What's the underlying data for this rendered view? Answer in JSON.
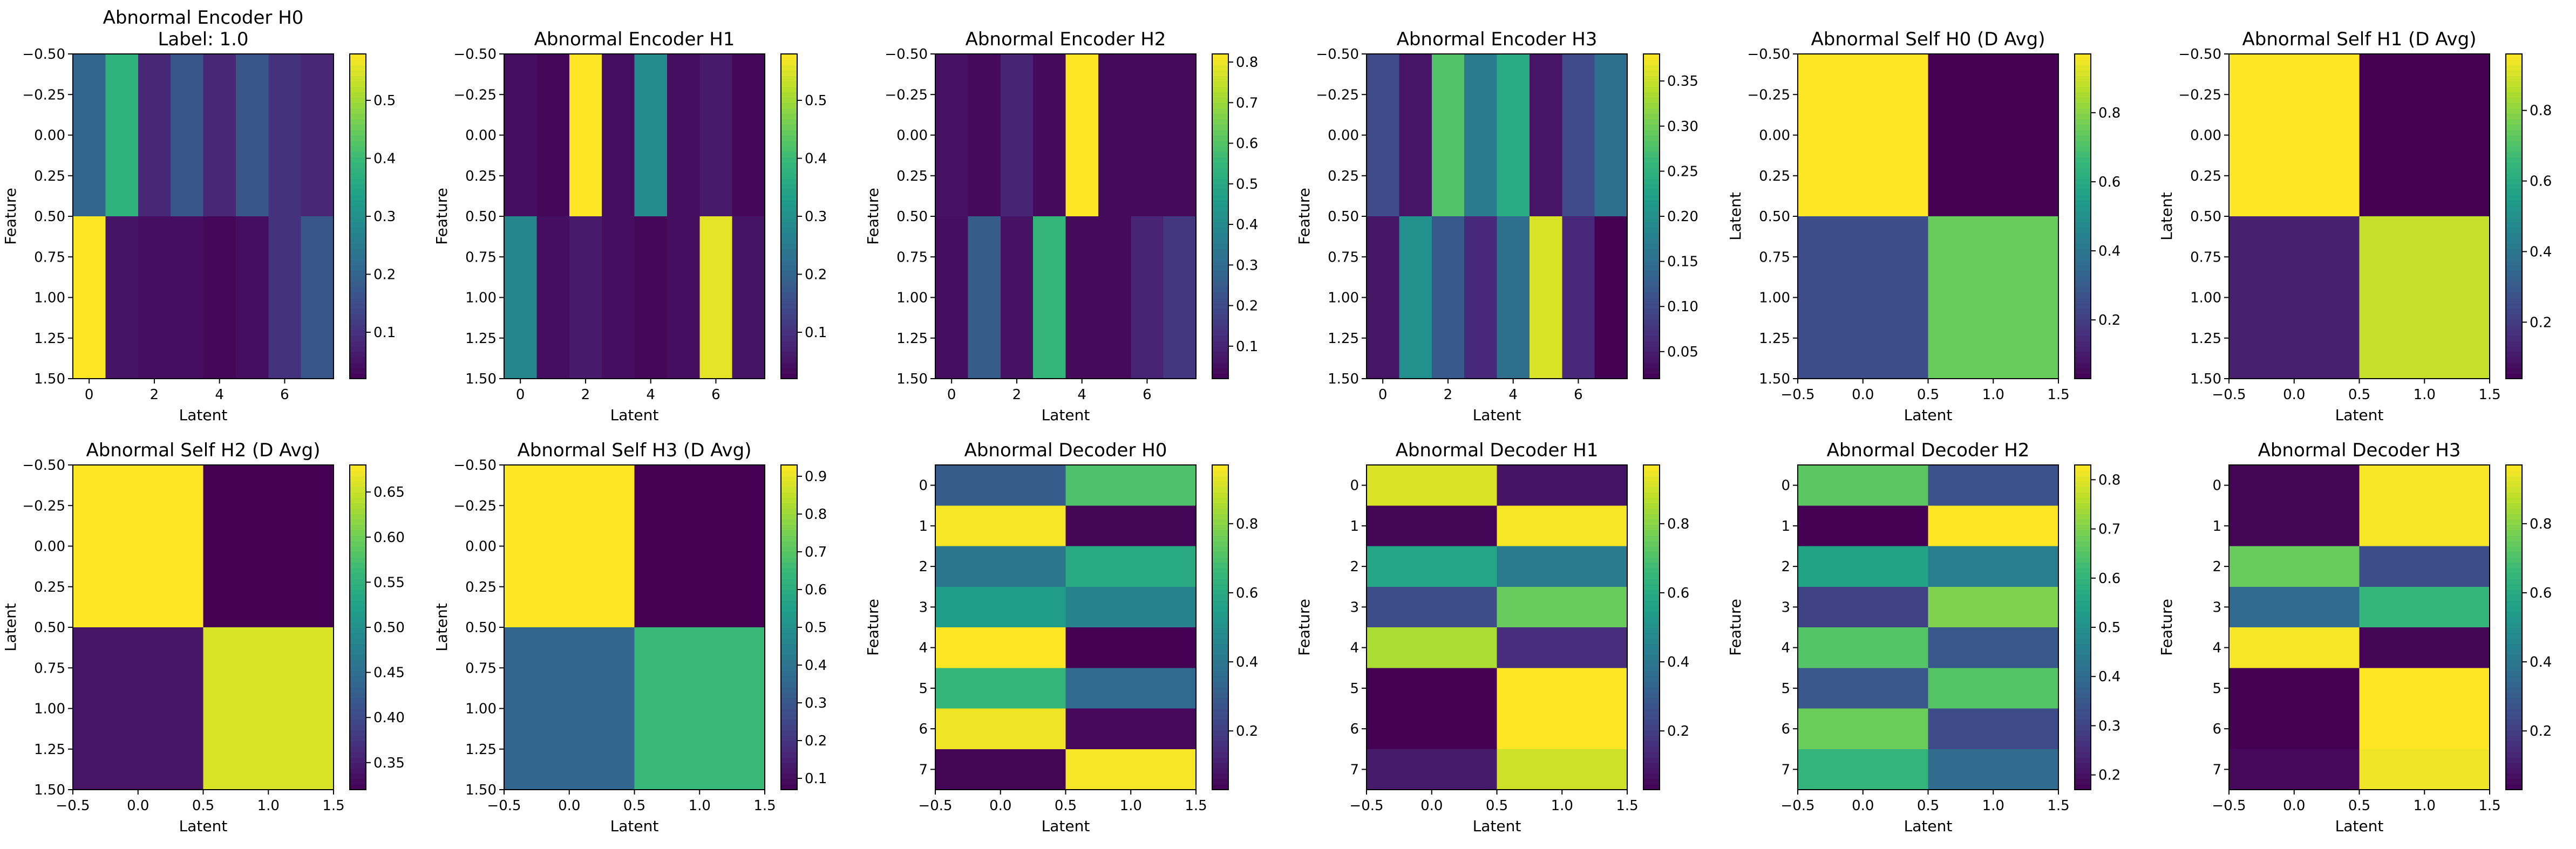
{
  "figure": {
    "cmap": "viridis",
    "colors": {
      "background": "#ffffff",
      "axes": "#000000"
    }
  },
  "chart_data": [
    {
      "id": "enc-h0",
      "type": "heatmap",
      "title": "Abnormal Encoder H0\nLabel: 1.0",
      "xlabel": "Latent",
      "ylabel": "Feature",
      "xlim": [
        -0.5,
        7.5
      ],
      "ylim": [
        1.5,
        -0.5
      ],
      "xticks": [
        0,
        2,
        4,
        6
      ],
      "yticks": [
        -0.5,
        -0.25,
        0.0,
        0.25,
        0.5,
        0.75,
        1.0,
        1.25,
        1.5
      ],
      "xtick_labels": [
        "0",
        "2",
        "4",
        "6"
      ],
      "ytick_labels": [
        "−0.50",
        "−0.25",
        "0.00",
        "0.25",
        "0.50",
        "0.75",
        "1.00",
        "1.25",
        "1.50"
      ],
      "colorbar": {
        "vmin": 0.02,
        "vmax": 0.58,
        "ticks": [
          0.1,
          0.2,
          0.3,
          0.4,
          0.5
        ],
        "tick_labels": [
          "0.1",
          "0.2",
          "0.3",
          "0.4",
          "0.5"
        ]
      },
      "z": [
        [
          0.2,
          0.38,
          0.08,
          0.17,
          0.08,
          0.17,
          0.1,
          0.08
        ],
        [
          0.58,
          0.05,
          0.04,
          0.04,
          0.03,
          0.04,
          0.1,
          0.17
        ]
      ]
    },
    {
      "id": "enc-h1",
      "type": "heatmap",
      "title": "Abnormal Encoder H1",
      "xlabel": "Latent",
      "ylabel": "Feature",
      "xlim": [
        -0.5,
        7.5
      ],
      "ylim": [
        1.5,
        -0.5
      ],
      "xticks": [
        0,
        2,
        4,
        6
      ],
      "yticks": [
        -0.5,
        -0.25,
        0.0,
        0.25,
        0.5,
        0.75,
        1.0,
        1.25,
        1.5
      ],
      "xtick_labels": [
        "0",
        "2",
        "4",
        "6"
      ],
      "ytick_labels": [
        "−0.50",
        "−0.25",
        "0.00",
        "0.25",
        "0.50",
        "0.75",
        "1.00",
        "1.25",
        "1.50"
      ],
      "colorbar": {
        "vmin": 0.02,
        "vmax": 0.58,
        "ticks": [
          0.1,
          0.2,
          0.3,
          0.4,
          0.5
        ],
        "tick_labels": [
          "0.1",
          "0.2",
          "0.3",
          "0.4",
          "0.5"
        ]
      },
      "z": [
        [
          0.04,
          0.03,
          0.58,
          0.04,
          0.29,
          0.04,
          0.06,
          0.03
        ],
        [
          0.28,
          0.04,
          0.06,
          0.04,
          0.03,
          0.04,
          0.56,
          0.05
        ]
      ]
    },
    {
      "id": "enc-h2",
      "type": "heatmap",
      "title": "Abnormal Encoder H2",
      "xlabel": "Latent",
      "ylabel": "Feature",
      "xlim": [
        -0.5,
        7.5
      ],
      "ylim": [
        1.5,
        -0.5
      ],
      "xticks": [
        0,
        2,
        4,
        6
      ],
      "yticks": [
        -0.5,
        -0.25,
        0.0,
        0.25,
        0.5,
        0.75,
        1.0,
        1.25,
        1.5
      ],
      "xtick_labels": [
        "0",
        "2",
        "4",
        "6"
      ],
      "ytick_labels": [
        "−0.50",
        "−0.25",
        "0.00",
        "0.25",
        "0.50",
        "0.75",
        "1.00",
        "1.25",
        "1.50"
      ],
      "colorbar": {
        "vmin": 0.02,
        "vmax": 0.82,
        "ticks": [
          0.1,
          0.2,
          0.3,
          0.4,
          0.5,
          0.6,
          0.7,
          0.8
        ],
        "tick_labels": [
          "0.1",
          "0.2",
          "0.3",
          "0.4",
          "0.5",
          "0.6",
          "0.7",
          "0.8"
        ]
      },
      "z": [
        [
          0.06,
          0.04,
          0.1,
          0.04,
          0.82,
          0.04,
          0.04,
          0.04
        ],
        [
          0.05,
          0.25,
          0.06,
          0.55,
          0.04,
          0.04,
          0.1,
          0.15
        ]
      ]
    },
    {
      "id": "enc-h3",
      "type": "heatmap",
      "title": "Abnormal Encoder H3",
      "xlabel": "Latent",
      "ylabel": "Feature",
      "xlim": [
        -0.5,
        7.5
      ],
      "ylim": [
        1.5,
        -0.5
      ],
      "xticks": [
        0,
        2,
        4,
        6
      ],
      "yticks": [
        -0.5,
        -0.25,
        0.0,
        0.25,
        0.5,
        0.75,
        1.0,
        1.25,
        1.5
      ],
      "xtick_labels": [
        "0",
        "2",
        "4",
        "6"
      ],
      "ytick_labels": [
        "−0.50",
        "−0.25",
        "0.00",
        "0.25",
        "0.50",
        "0.75",
        "1.00",
        "1.25",
        "1.50"
      ],
      "colorbar": {
        "vmin": 0.02,
        "vmax": 0.38,
        "ticks": [
          0.05,
          0.1,
          0.15,
          0.2,
          0.25,
          0.3,
          0.35
        ],
        "tick_labels": [
          "0.05",
          "0.10",
          "0.15",
          "0.20",
          "0.25",
          "0.30",
          "0.35"
        ]
      },
      "z": [
        [
          0.1,
          0.04,
          0.28,
          0.17,
          0.24,
          0.04,
          0.1,
          0.15
        ],
        [
          0.04,
          0.2,
          0.12,
          0.06,
          0.15,
          0.36,
          0.06,
          0.02
        ]
      ]
    },
    {
      "id": "self-h0",
      "type": "heatmap",
      "title": "Abnormal Self H0 (D Avg)",
      "xlabel": "Latent",
      "ylabel": "Latent",
      "xlim": [
        -0.5,
        1.5
      ],
      "ylim": [
        1.5,
        -0.5
      ],
      "xticks": [
        -0.5,
        0.0,
        0.5,
        1.0,
        1.5
      ],
      "yticks": [
        -0.5,
        -0.25,
        0.0,
        0.25,
        0.5,
        0.75,
        1.0,
        1.25,
        1.5
      ],
      "xtick_labels": [
        "−0.5",
        "0.0",
        "0.5",
        "1.0",
        "1.5"
      ],
      "ytick_labels": [
        "−0.50",
        "−0.25",
        "0.00",
        "0.25",
        "0.50",
        "0.75",
        "1.00",
        "1.25",
        "1.50"
      ],
      "colorbar": {
        "vmin": 0.03,
        "vmax": 0.97,
        "ticks": [
          0.2,
          0.4,
          0.6,
          0.8
        ],
        "tick_labels": [
          "0.2",
          "0.4",
          "0.6",
          "0.8"
        ]
      },
      "z": [
        [
          0.97,
          0.03
        ],
        [
          0.25,
          0.75
        ]
      ]
    },
    {
      "id": "self-h1",
      "type": "heatmap",
      "title": "Abnormal Self H1 (D Avg)",
      "xlabel": "Latent",
      "ylabel": "Latent",
      "xlim": [
        -0.5,
        1.5
      ],
      "ylim": [
        1.5,
        -0.5
      ],
      "xticks": [
        -0.5,
        0.0,
        0.5,
        1.0,
        1.5
      ],
      "yticks": [
        -0.5,
        -0.25,
        0.0,
        0.25,
        0.5,
        0.75,
        1.0,
        1.25,
        1.5
      ],
      "xtick_labels": [
        "−0.5",
        "0.0",
        "0.5",
        "1.0",
        "1.5"
      ],
      "ytick_labels": [
        "−0.50",
        "−0.25",
        "0.00",
        "0.25",
        "0.50",
        "0.75",
        "1.00",
        "1.25",
        "1.50"
      ],
      "colorbar": {
        "vmin": 0.04,
        "vmax": 0.96,
        "ticks": [
          0.2,
          0.4,
          0.6,
          0.8
        ],
        "tick_labels": [
          "0.2",
          "0.4",
          "0.6",
          "0.8"
        ]
      },
      "z": [
        [
          0.96,
          0.04
        ],
        [
          0.12,
          0.88
        ]
      ]
    },
    {
      "id": "self-h2",
      "type": "heatmap",
      "title": "Abnormal Self H2 (D Avg)",
      "xlabel": "Latent",
      "ylabel": "Latent",
      "xlim": [
        -0.5,
        1.5
      ],
      "ylim": [
        1.5,
        -0.5
      ],
      "xticks": [
        -0.5,
        0.0,
        0.5,
        1.0,
        1.5
      ],
      "yticks": [
        -0.5,
        -0.25,
        0.0,
        0.25,
        0.5,
        0.75,
        1.0,
        1.25,
        1.5
      ],
      "xtick_labels": [
        "−0.5",
        "0.0",
        "0.5",
        "1.0",
        "1.5"
      ],
      "ytick_labels": [
        "−0.50",
        "−0.25",
        "0.00",
        "0.25",
        "0.50",
        "0.75",
        "1.00",
        "1.25",
        "1.50"
      ],
      "colorbar": {
        "vmin": 0.32,
        "vmax": 0.68,
        "ticks": [
          0.35,
          0.4,
          0.45,
          0.5,
          0.55,
          0.6,
          0.65
        ],
        "tick_labels": [
          "0.35",
          "0.40",
          "0.45",
          "0.50",
          "0.55",
          "0.60",
          "0.65"
        ]
      },
      "z": [
        [
          0.68,
          0.32
        ],
        [
          0.34,
          0.66
        ]
      ]
    },
    {
      "id": "self-h3",
      "type": "heatmap",
      "title": "Abnormal Self H3 (D Avg)",
      "xlabel": "Latent",
      "ylabel": "Latent",
      "xlim": [
        -0.5,
        1.5
      ],
      "ylim": [
        1.5,
        -0.5
      ],
      "xticks": [
        -0.5,
        0.0,
        0.5,
        1.0,
        1.5
      ],
      "yticks": [
        -0.5,
        -0.25,
        0.0,
        0.25,
        0.5,
        0.75,
        1.0,
        1.25,
        1.5
      ],
      "xtick_labels": [
        "−0.5",
        "0.0",
        "0.5",
        "1.0",
        "1.5"
      ],
      "ytick_labels": [
        "−0.50",
        "−0.25",
        "0.00",
        "0.25",
        "0.50",
        "0.75",
        "1.00",
        "1.25",
        "1.50"
      ],
      "colorbar": {
        "vmin": 0.07,
        "vmax": 0.93,
        "ticks": [
          0.1,
          0.2,
          0.3,
          0.4,
          0.5,
          0.6,
          0.7,
          0.8,
          0.9
        ],
        "tick_labels": [
          "0.1",
          "0.2",
          "0.3",
          "0.4",
          "0.5",
          "0.6",
          "0.7",
          "0.8",
          "0.9"
        ]
      },
      "z": [
        [
          0.93,
          0.07
        ],
        [
          0.35,
          0.65
        ]
      ]
    },
    {
      "id": "dec-h0",
      "type": "heatmap",
      "title": "Abnormal Decoder H0",
      "xlabel": "Latent",
      "ylabel": "Feature",
      "xlim": [
        -0.5,
        1.5
      ],
      "ylim": [
        7.5,
        -0.5
      ],
      "xticks": [
        -0.5,
        0.0,
        0.5,
        1.0,
        1.5
      ],
      "yticks": [
        0,
        1,
        2,
        3,
        4,
        5,
        6,
        7
      ],
      "xtick_labels": [
        "−0.5",
        "0.0",
        "0.5",
        "1.0",
        "1.5"
      ],
      "ytick_labels": [
        "0",
        "1",
        "2",
        "3",
        "4",
        "5",
        "6",
        "7"
      ],
      "colorbar": {
        "vmin": 0.03,
        "vmax": 0.97,
        "ticks": [
          0.2,
          0.4,
          0.6,
          0.8
        ],
        "tick_labels": [
          "0.2",
          "0.4",
          "0.6",
          "0.8"
        ]
      },
      "z": [
        [
          0.3,
          0.7
        ],
        [
          0.96,
          0.04
        ],
        [
          0.4,
          0.6
        ],
        [
          0.55,
          0.45
        ],
        [
          0.97,
          0.03
        ],
        [
          0.65,
          0.35
        ],
        [
          0.95,
          0.05
        ],
        [
          0.04,
          0.96
        ]
      ]
    },
    {
      "id": "dec-h1",
      "type": "heatmap",
      "title": "Abnormal Decoder H1",
      "xlabel": "Latent",
      "ylabel": "Feature",
      "xlim": [
        -0.5,
        1.5
      ],
      "ylim": [
        7.5,
        -0.5
      ],
      "xticks": [
        -0.5,
        0.0,
        0.5,
        1.0,
        1.5
      ],
      "yticks": [
        0,
        1,
        2,
        3,
        4,
        5,
        6,
        7
      ],
      "xtick_labels": [
        "−0.5",
        "0.0",
        "0.5",
        "1.0",
        "1.5"
      ],
      "ytick_labels": [
        "0",
        "1",
        "2",
        "3",
        "4",
        "5",
        "6",
        "7"
      ],
      "colorbar": {
        "vmin": 0.03,
        "vmax": 0.97,
        "ticks": [
          0.2,
          0.4,
          0.6,
          0.8
        ],
        "tick_labels": [
          "0.2",
          "0.4",
          "0.6",
          "0.8"
        ]
      },
      "z": [
        [
          0.92,
          0.08
        ],
        [
          0.04,
          0.96
        ],
        [
          0.58,
          0.42
        ],
        [
          0.25,
          0.75
        ],
        [
          0.85,
          0.15
        ],
        [
          0.03,
          0.97
        ],
        [
          0.03,
          0.97
        ],
        [
          0.1,
          0.9
        ]
      ]
    },
    {
      "id": "dec-h2",
      "type": "heatmap",
      "title": "Abnormal Decoder H2",
      "xlabel": "Latent",
      "ylabel": "Feature",
      "xlim": [
        -0.5,
        1.5
      ],
      "ylim": [
        7.5,
        -0.5
      ],
      "xticks": [
        -0.5,
        0.0,
        0.5,
        1.0,
        1.5
      ],
      "yticks": [
        0,
        1,
        2,
        3,
        4,
        5,
        6,
        7
      ],
      "xtick_labels": [
        "−0.5",
        "0.0",
        "0.5",
        "1.0",
        "1.5"
      ],
      "ytick_labels": [
        "0",
        "1",
        "2",
        "3",
        "4",
        "5",
        "6",
        "7"
      ],
      "colorbar": {
        "vmin": 0.17,
        "vmax": 0.83,
        "ticks": [
          0.2,
          0.3,
          0.4,
          0.5,
          0.6,
          0.7,
          0.8
        ],
        "tick_labels": [
          "0.2",
          "0.3",
          "0.4",
          "0.5",
          "0.6",
          "0.7",
          "0.8"
        ]
      },
      "z": [
        [
          0.66,
          0.34
        ],
        [
          0.17,
          0.83
        ],
        [
          0.55,
          0.45
        ],
        [
          0.3,
          0.7
        ],
        [
          0.65,
          0.35
        ],
        [
          0.35,
          0.65
        ],
        [
          0.68,
          0.32
        ],
        [
          0.6,
          0.4
        ]
      ]
    },
    {
      "id": "dec-h3",
      "type": "heatmap",
      "title": "Abnormal Decoder H3",
      "xlabel": "Latent",
      "ylabel": "Feature",
      "xlim": [
        -0.5,
        1.5
      ],
      "ylim": [
        7.5,
        -0.5
      ],
      "xticks": [
        -0.5,
        0.0,
        0.5,
        1.0,
        1.5
      ],
      "yticks": [
        0,
        1,
        2,
        3,
        4,
        5,
        6,
        7
      ],
      "xtick_labels": [
        "−0.5",
        "0.0",
        "0.5",
        "1.0",
        "1.5"
      ],
      "ytick_labels": [
        "0",
        "1",
        "2",
        "3",
        "4",
        "5",
        "6",
        "7"
      ],
      "colorbar": {
        "vmin": 0.03,
        "vmax": 0.97,
        "ticks": [
          0.2,
          0.4,
          0.6,
          0.8
        ],
        "tick_labels": [
          "0.2",
          "0.4",
          "0.6",
          "0.8"
        ]
      },
      "z": [
        [
          0.04,
          0.96
        ],
        [
          0.04,
          0.96
        ],
        [
          0.75,
          0.25
        ],
        [
          0.35,
          0.65
        ],
        [
          0.96,
          0.04
        ],
        [
          0.03,
          0.97
        ],
        [
          0.03,
          0.97
        ],
        [
          0.05,
          0.95
        ]
      ]
    }
  ]
}
